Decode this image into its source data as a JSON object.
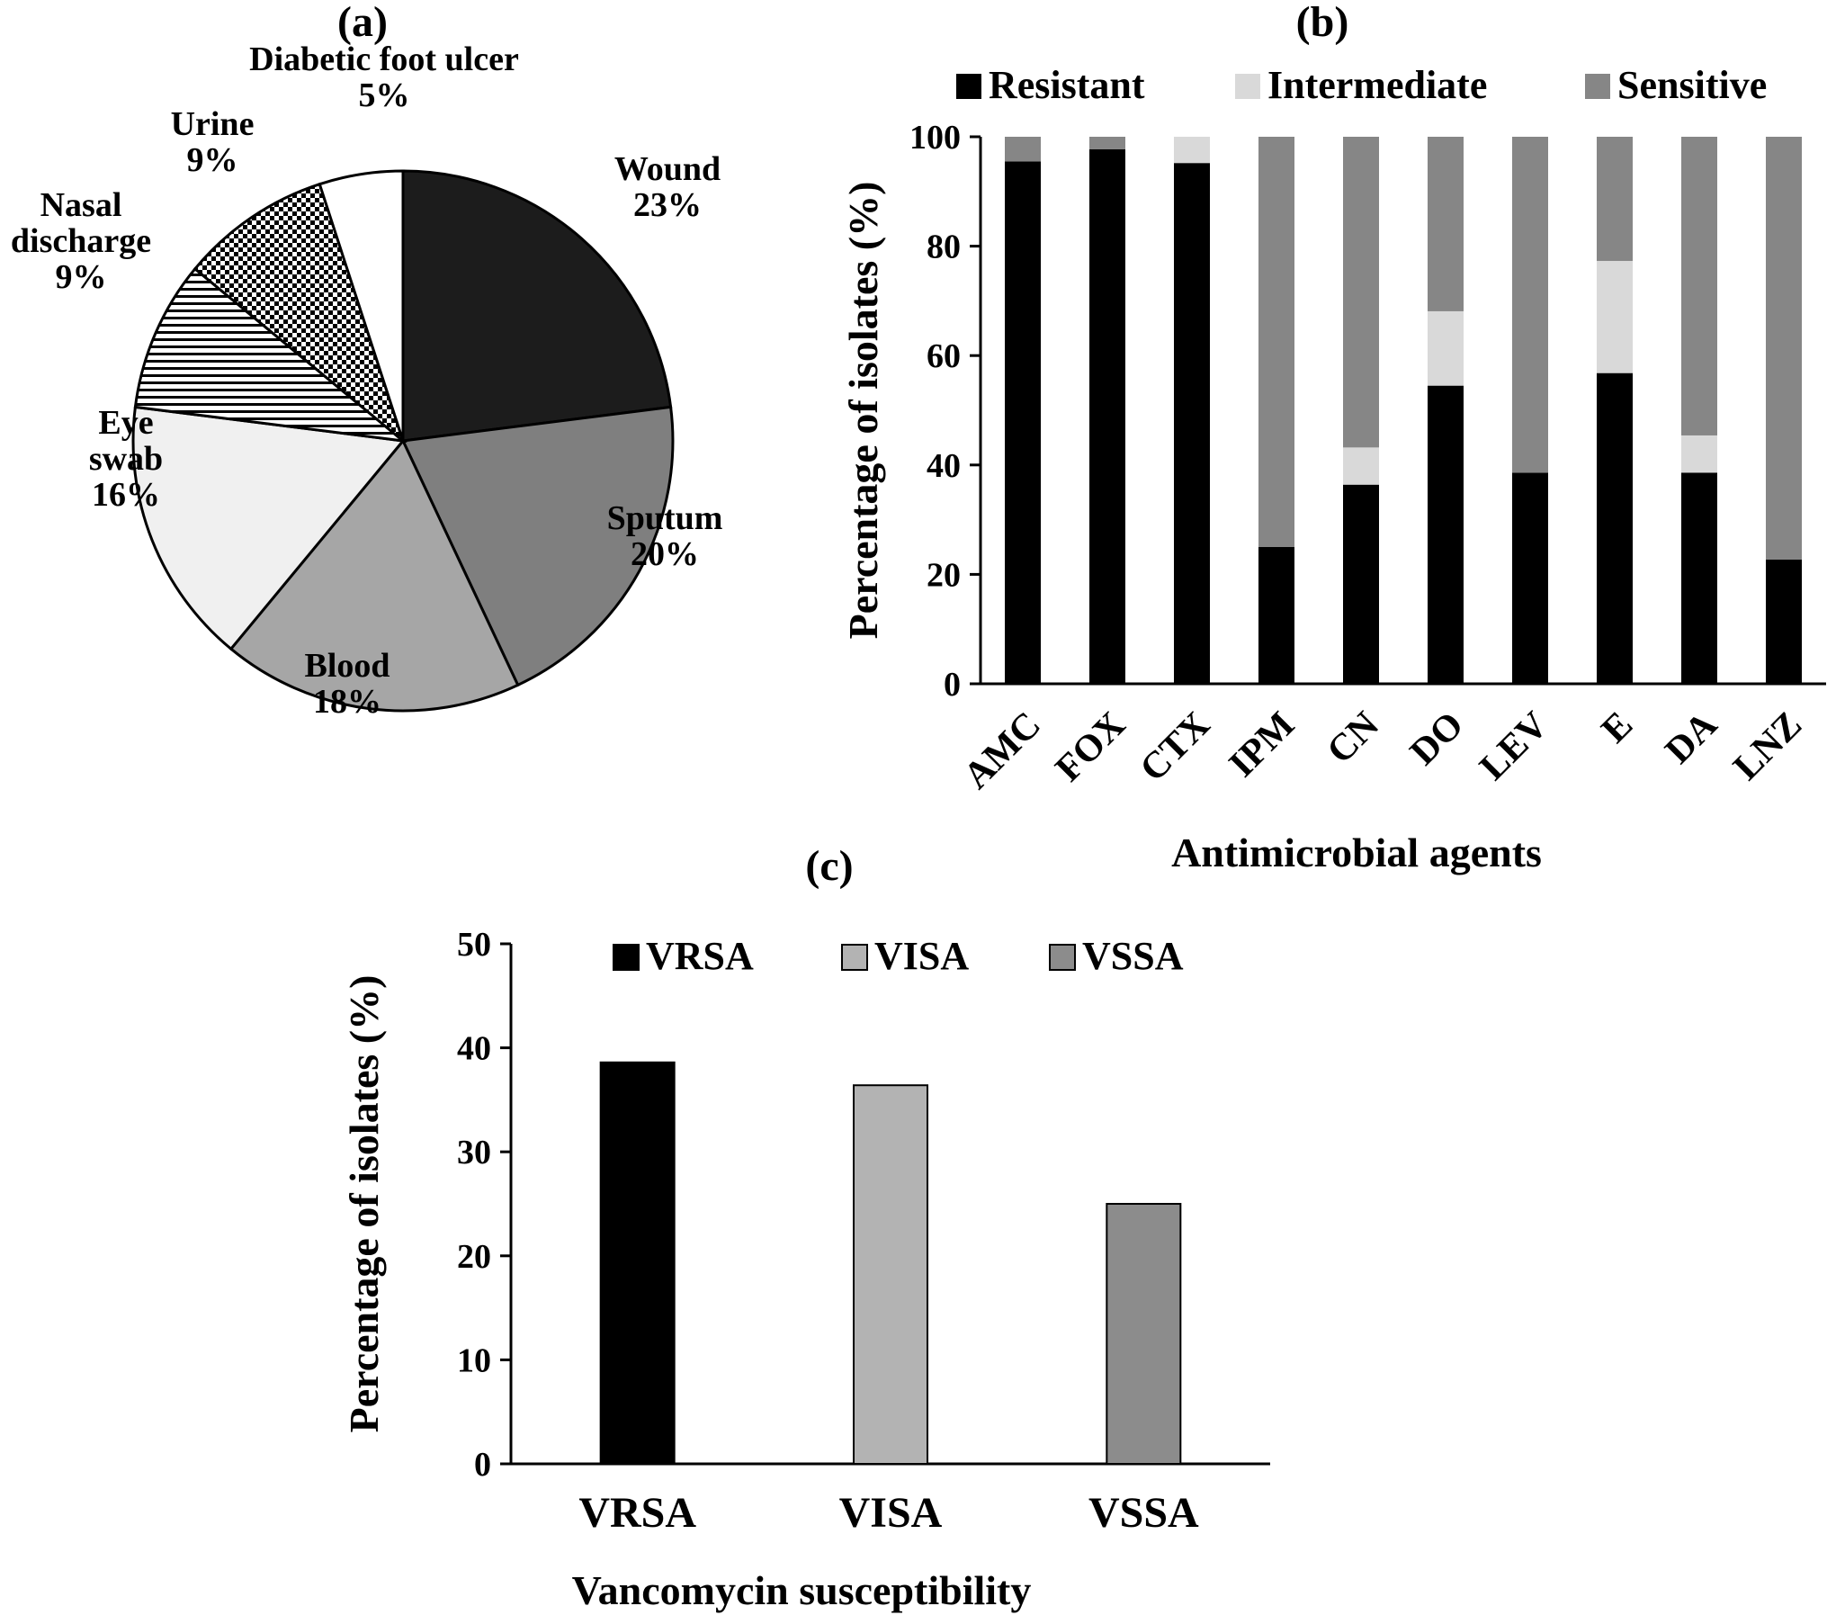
{
  "colors": {
    "resistant": "#000000",
    "intermediate": "#d9d9d9",
    "sensitive": "#868686",
    "vrsa": "#000000",
    "visa": "#b3b3b3",
    "vssa": "#8c8c8c",
    "pie_wound": "#1c1c1c",
    "pie_sputum": "#7f7f7f",
    "pie_blood": "#a6a6a6",
    "pie_eye": "#f0f0f0",
    "pie_nasal": "hatch-horizontal",
    "pie_urine": "checker",
    "pie_dfu": "#ffffff"
  },
  "chart_data": [
    {
      "panel": "(a)",
      "type": "pie",
      "title": "",
      "slices": [
        {
          "label": "Wound",
          "value": 23,
          "value_label": "23%",
          "fill": "pie_wound"
        },
        {
          "label": "Sputum",
          "value": 20,
          "value_label": "20%",
          "fill": "pie_sputum"
        },
        {
          "label": "Blood",
          "value": 18,
          "value_label": "18%",
          "fill": "pie_blood"
        },
        {
          "label": "Eye swab",
          "label_lines": [
            "Eye",
            "swab"
          ],
          "value": 16,
          "value_label": "16%",
          "fill": "pie_eye"
        },
        {
          "label": "Nasal discharge",
          "label_lines": [
            "Nasal",
            "discharge"
          ],
          "value": 9,
          "value_label": "9%",
          "fill": "pie_nasal"
        },
        {
          "label": "Urine",
          "value": 9,
          "value_label": "9%",
          "fill": "pie_urine"
        },
        {
          "label": "Diabetic foot ulcer",
          "value": 5,
          "value_label": "5%",
          "fill": "pie_dfu"
        }
      ]
    },
    {
      "panel": "(b)",
      "type": "bar",
      "stacked": true,
      "title": "",
      "xlabel": "Antimicrobial agents",
      "ylabel": "Percentage of isolates (%)",
      "ylim": [
        0,
        100
      ],
      "yticks": [
        0,
        20,
        40,
        60,
        80,
        100
      ],
      "legend_position": "top",
      "categories": [
        "AMC",
        "FOX",
        "CTX",
        "IPM",
        "CN",
        "DO",
        "LEV",
        "E",
        "DA",
        "LNZ"
      ],
      "series": [
        {
          "name": "Resistant",
          "color": "resistant",
          "values": [
            95.5,
            97.7,
            95.2,
            25.0,
            36.4,
            54.5,
            38.6,
            56.8,
            38.6,
            22.7
          ]
        },
        {
          "name": "Intermediate",
          "color": "intermediate",
          "values": [
            0,
            0,
            4.8,
            0,
            6.8,
            13.6,
            0,
            20.5,
            6.8,
            0
          ]
        },
        {
          "name": "Sensitive",
          "color": "sensitive",
          "values": [
            4.5,
            2.3,
            0,
            75.0,
            56.8,
            31.9,
            61.4,
            22.7,
            54.6,
            77.3
          ]
        }
      ]
    },
    {
      "panel": "(c)",
      "type": "bar",
      "title": "",
      "xlabel": "Vancomycin susceptibility",
      "ylabel": "Percentage of isolates (%)",
      "ylim": [
        0,
        50
      ],
      "yticks": [
        0,
        10,
        20,
        30,
        40,
        50
      ],
      "legend_position": "top",
      "categories": [
        "VRSA",
        "VISA",
        "VSSA"
      ],
      "series": [
        {
          "name": "VRSA",
          "color": "vrsa",
          "values": [
            38.6,
            0,
            0
          ]
        },
        {
          "name": "VISA",
          "color": "visa",
          "values": [
            0,
            36.4,
            0
          ]
        },
        {
          "name": "VSSA",
          "color": "vssa",
          "values": [
            0,
            0,
            25.0
          ]
        }
      ]
    }
  ]
}
